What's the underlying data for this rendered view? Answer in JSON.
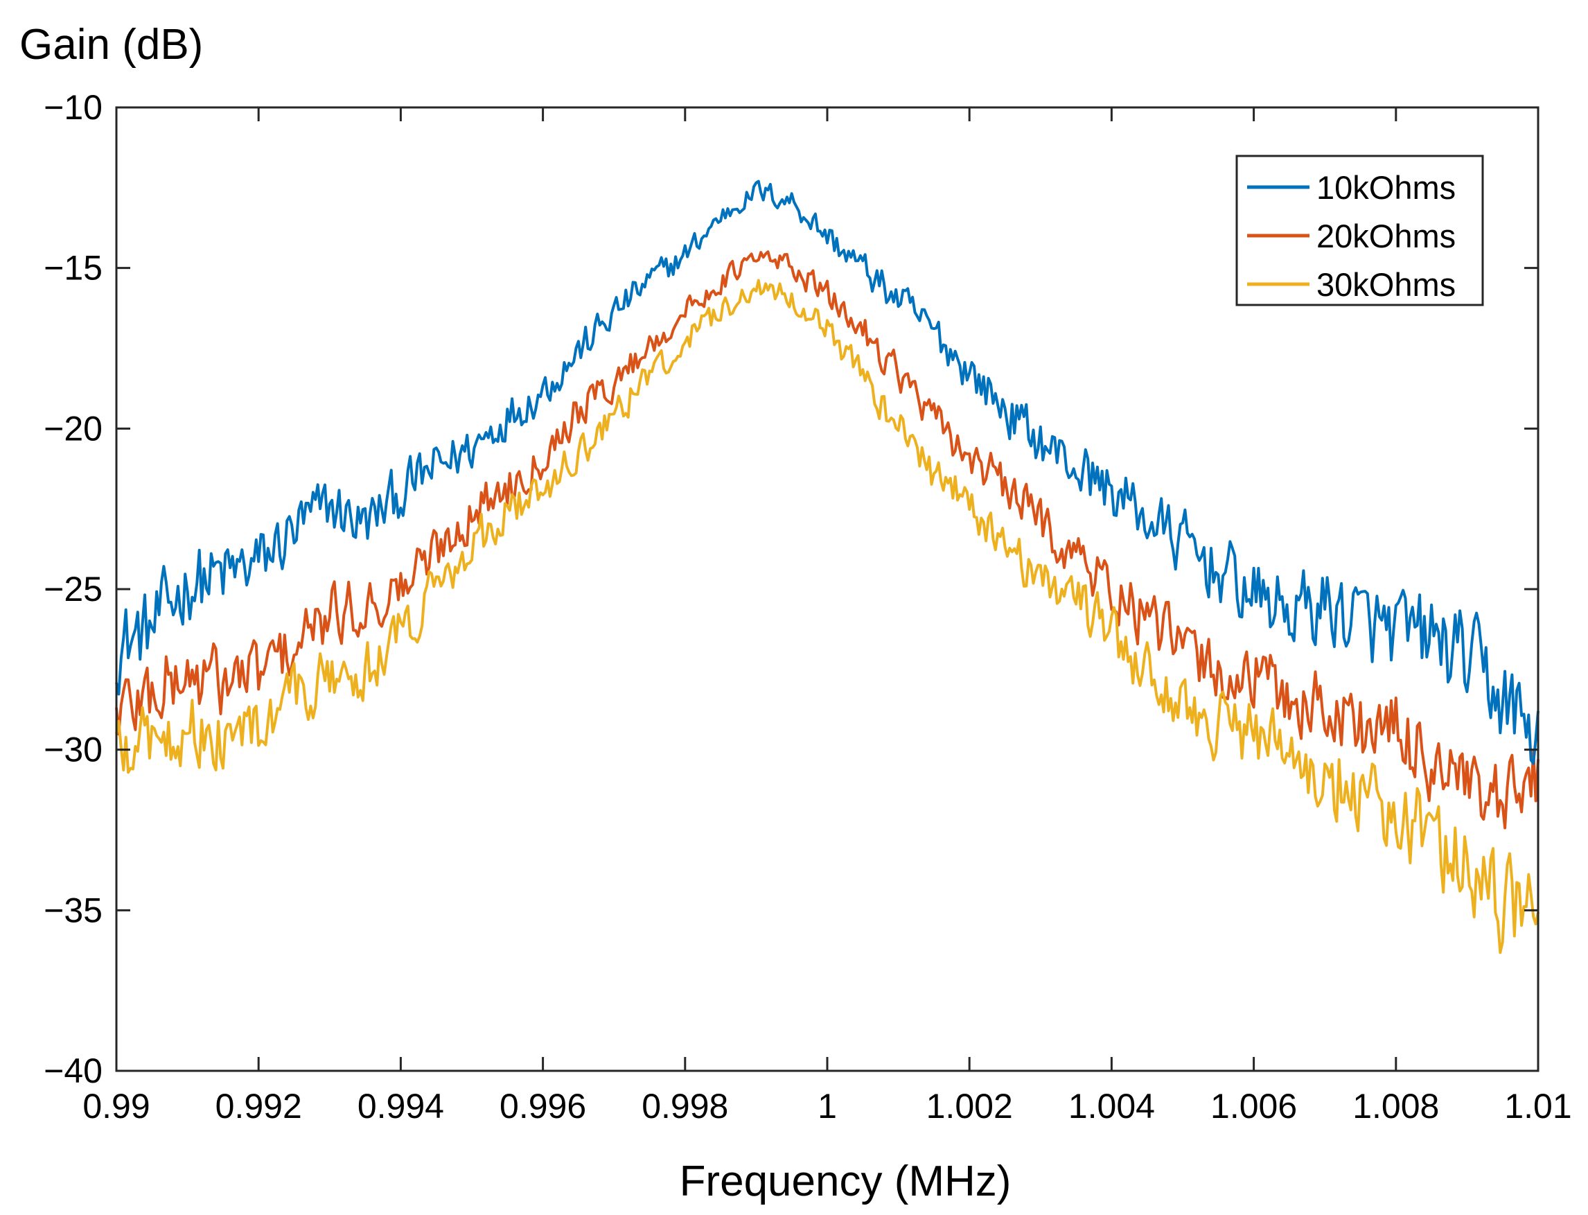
{
  "chart_data": {
    "type": "line",
    "title": "",
    "ylabel": "Gain (dB)",
    "xlabel": "Frequency (MHz)",
    "xlim": [
      0.99,
      1.01
    ],
    "ylim": [
      -40,
      -10
    ],
    "xticks": [
      0.99,
      0.992,
      0.994,
      0.996,
      0.998,
      1,
      1.002,
      1.004,
      1.006,
      1.008,
      1.01
    ],
    "xtick_labels": [
      "0.99",
      "0.992",
      "0.994",
      "0.996",
      "0.998",
      "1",
      "1.002",
      "1.004",
      "1.006",
      "1.008",
      "1.01"
    ],
    "yticks": [
      -40,
      -35,
      -30,
      -25,
      -20,
      -15,
      -10
    ],
    "ytick_labels": [
      "−40",
      "−35",
      "−30",
      "−25",
      "−20",
      "−15",
      "−10"
    ],
    "grid": false,
    "legend_position": "top-right",
    "x": [
      0.99,
      0.9905,
      0.991,
      0.9915,
      0.992,
      0.9925,
      0.993,
      0.9935,
      0.994,
      0.9945,
      0.995,
      0.9955,
      0.996,
      0.9965,
      0.997,
      0.9975,
      0.998,
      0.9985,
      0.999,
      0.9995,
      1.0,
      1.0005,
      1.001,
      1.0015,
      1.002,
      1.0025,
      1.003,
      1.0035,
      1.004,
      1.0045,
      1.005,
      1.0055,
      1.006,
      1.0065,
      1.007,
      1.0075,
      1.008,
      1.0085,
      1.009,
      1.0095,
      1.01
    ],
    "series": [
      {
        "name": "10kOhms",
        "color": "#0072BD",
        "values": [
          -26.8,
          -26.2,
          -24.8,
          -24.6,
          -24.2,
          -23.2,
          -22.4,
          -23.0,
          -22.0,
          -21.2,
          -20.6,
          -19.6,
          -18.8,
          -17.6,
          -16.4,
          -15.4,
          -14.6,
          -13.4,
          -12.6,
          -12.9,
          -14.0,
          -15.0,
          -16.0,
          -17.0,
          -18.2,
          -19.4,
          -20.4,
          -21.2,
          -21.9,
          -22.8,
          -23.6,
          -24.4,
          -25.2,
          -25.7,
          -25.5,
          -26.0,
          -26.4,
          -26.5,
          -27.2,
          -28.4,
          -29.7
        ]
      },
      {
        "name": "20kOhms",
        "color": "#D95319",
        "values": [
          -28.8,
          -28.2,
          -27.7,
          -27.9,
          -27.6,
          -26.8,
          -25.9,
          -25.5,
          -25.0,
          -23.8,
          -22.6,
          -21.8,
          -20.8,
          -19.4,
          -18.6,
          -17.4,
          -16.4,
          -15.4,
          -14.7,
          -14.9,
          -15.9,
          -16.9,
          -18.2,
          -19.8,
          -20.8,
          -21.9,
          -22.8,
          -24.0,
          -25.0,
          -26.0,
          -26.9,
          -27.6,
          -27.8,
          -28.4,
          -28.7,
          -29.2,
          -29.6,
          -30.2,
          -31.4,
          -32.2,
          -30.8
        ]
      },
      {
        "name": "30kOhms",
        "color": "#EDB120",
        "values": [
          -30.2,
          -29.6,
          -29.2,
          -29.7,
          -29.5,
          -28.4,
          -27.8,
          -27.6,
          -26.4,
          -24.8,
          -23.6,
          -22.6,
          -21.8,
          -20.8,
          -19.6,
          -18.3,
          -17.2,
          -16.4,
          -15.6,
          -15.9,
          -16.8,
          -18.4,
          -19.9,
          -21.4,
          -22.4,
          -23.6,
          -24.6,
          -25.4,
          -26.5,
          -27.6,
          -28.6,
          -29.2,
          -29.6,
          -30.2,
          -30.8,
          -31.2,
          -32.0,
          -32.6,
          -33.6,
          -35.2,
          -33.8
        ]
      }
    ]
  }
}
